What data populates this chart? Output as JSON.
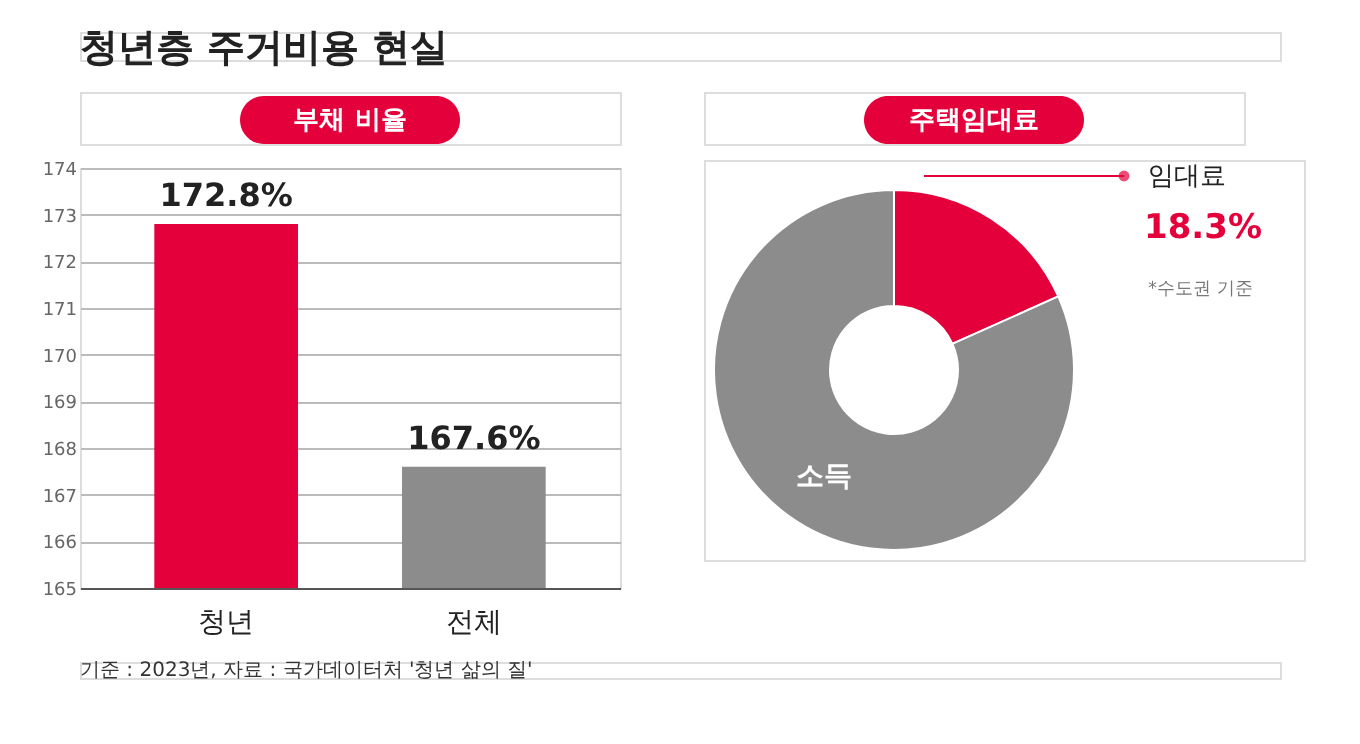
{
  "chart_data": [
    {
      "type": "bar",
      "title": "청년층 주거비용 현실",
      "subtitle": "부채 비율",
      "categories": [
        "청년",
        "전체"
      ],
      "values": [
        172.8,
        167.6
      ],
      "colors": [
        "#e4003a",
        "#8c8c8c"
      ],
      "ylim": [
        165,
        174
      ],
      "yticks": [
        165,
        166,
        167,
        168,
        169,
        170,
        171,
        172,
        173,
        174
      ],
      "grid": "y",
      "value_labels": [
        "172.8%",
        "167.6%"
      ],
      "annotations": [
        "기준 : 2023년, 자료 : 국가데이터처 '청년 삶의 질'"
      ]
    },
    {
      "type": "donut",
      "subtitle": "주택임대료",
      "categories": [
        "임대료",
        "소득"
      ],
      "values": [
        18.3,
        81.7
      ],
      "colors": [
        "#e4003a",
        "#8c8c8c"
      ],
      "value_labels": [
        "18.3%",
        null
      ],
      "annotations": [
        "*수도권 기준"
      ]
    }
  ]
}
